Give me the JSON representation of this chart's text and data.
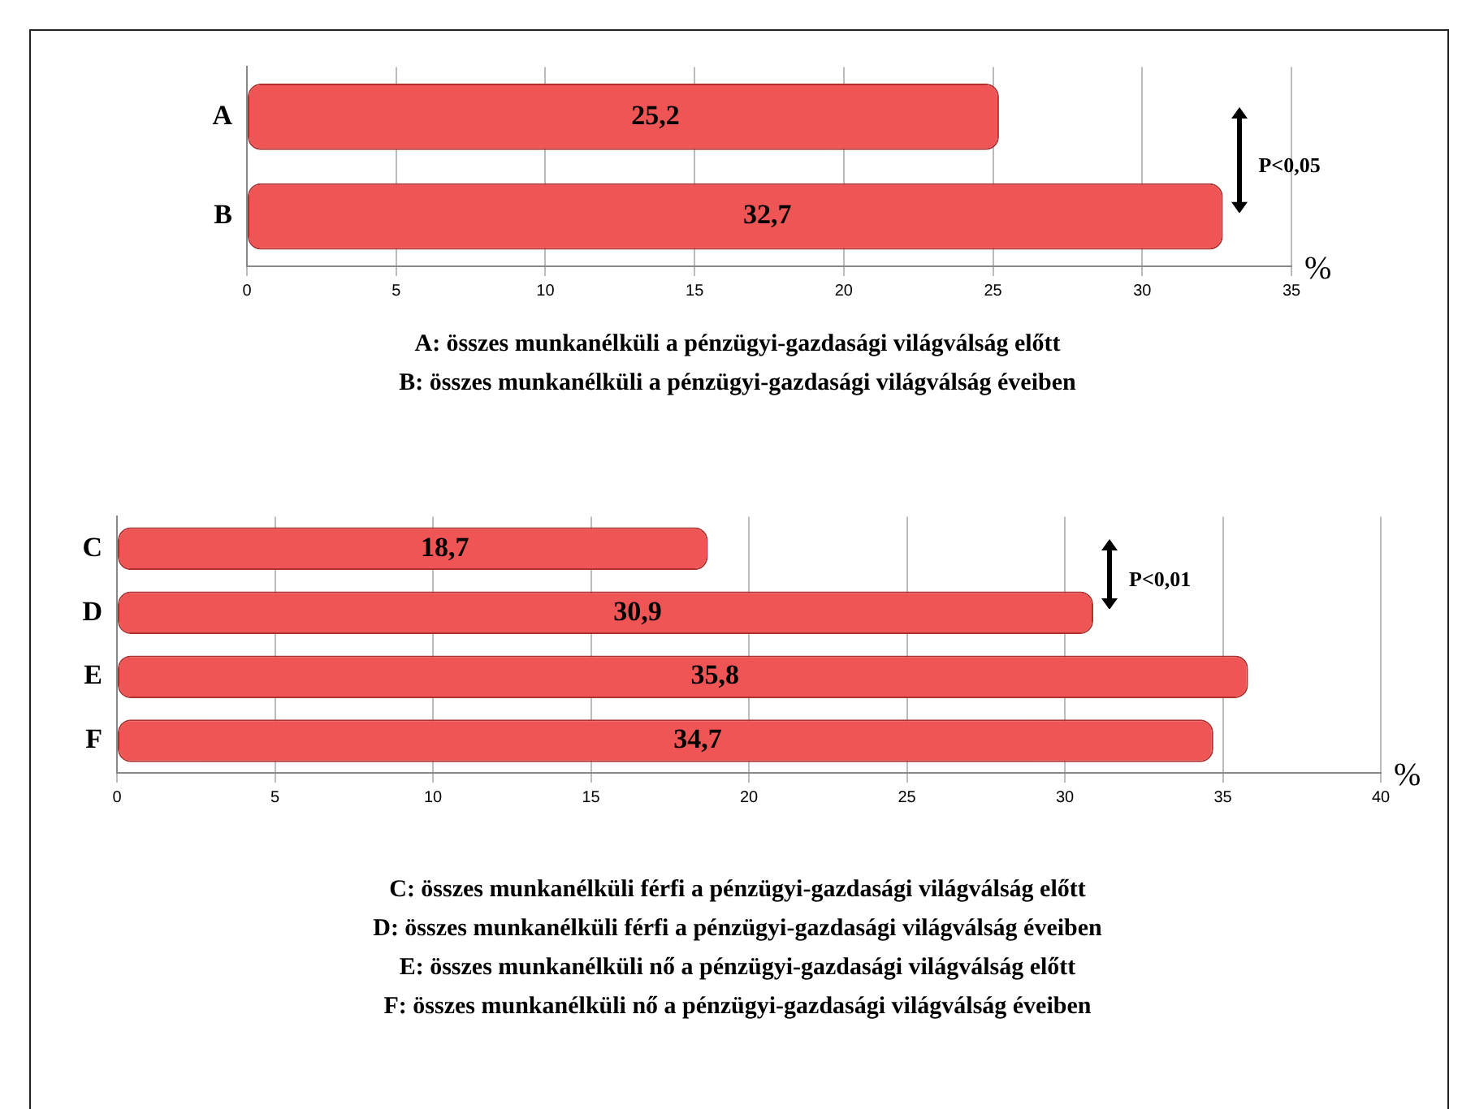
{
  "chart_data": [
    {
      "type": "bar",
      "orientation": "horizontal",
      "categories": [
        "A",
        "B"
      ],
      "values": [
        25.2,
        32.7
      ],
      "color": "#f05555",
      "value_labels": [
        "25,2",
        "32,7"
      ],
      "xlabel": "%",
      "xlim": [
        0,
        35
      ],
      "xticks": [
        0,
        5,
        10,
        15,
        20,
        25,
        30,
        35
      ],
      "grid": "x",
      "annotations": [
        "P<0,05",
        "A: összes munkanélküli a pénzügyi-gazdasági világválság előtt",
        "B: összes munkanélküli a pénzügyi-gazdasági világválság  éveiben"
      ]
    },
    {
      "type": "bar",
      "orientation": "horizontal",
      "categories": [
        "C",
        "D",
        "E",
        "F"
      ],
      "values": [
        18.7,
        30.9,
        35.8,
        34.7
      ],
      "color": "#f05555",
      "value_labels": [
        "18,7",
        "30,9",
        "35,8",
        "34,7"
      ],
      "xlabel": "%",
      "xlim": [
        0,
        40
      ],
      "xticks": [
        0,
        5,
        10,
        15,
        20,
        25,
        30,
        35,
        40
      ],
      "grid": "x",
      "annotations": [
        "P<0,01",
        "C: összes munkanélküli férfi a pénzügyi-gazdasági világválság  előtt",
        "D: összes munkanélküli férfi a pénzügyi-gazdasági világválság  éveiben",
        "E: összes munkanélküli nő a pénzügyi-gazdasági világválság  előtt",
        "F: összes munkanélküli nő a pénzügyi-gazdasági világválság  éveiben"
      ]
    }
  ]
}
